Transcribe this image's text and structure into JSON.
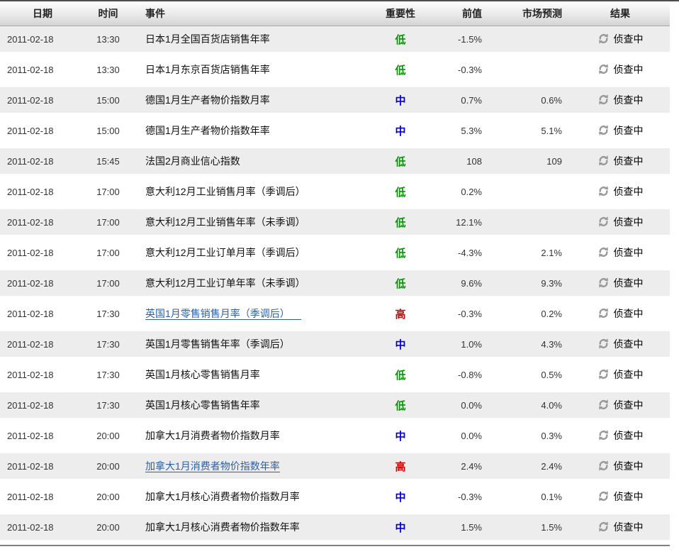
{
  "colors": {
    "low": "#009900",
    "mid": "#0000cc",
    "high": "#cc0000",
    "link": "#2b5fa8",
    "icon": "#999999"
  },
  "table": {
    "columns": [
      {
        "key": "date",
        "label": "日期"
      },
      {
        "key": "time",
        "label": "时间"
      },
      {
        "key": "event",
        "label": "事件"
      },
      {
        "key": "imp",
        "label": "重要性"
      },
      {
        "key": "prev",
        "label": "前值"
      },
      {
        "key": "forecast",
        "label": "市场预测"
      },
      {
        "key": "result",
        "label": "结果"
      }
    ],
    "rows": [
      {
        "date": "2011-02-18",
        "time": "13:30",
        "event": "日本1月全国百货店销售年率",
        "link": false,
        "trail": false,
        "importance": "低",
        "level": "low",
        "prev": "-1.5%",
        "forecast": "",
        "result": "侦查中"
      },
      {
        "date": "2011-02-18",
        "time": "13:30",
        "event": "日本1月东京百货店销售年率",
        "link": false,
        "trail": false,
        "importance": "低",
        "level": "low",
        "prev": "-0.3%",
        "forecast": "",
        "result": "侦查中"
      },
      {
        "date": "2011-02-18",
        "time": "15:00",
        "event": "德国1月生产者物价指数月率",
        "link": false,
        "trail": false,
        "importance": "中",
        "level": "mid",
        "prev": "0.7%",
        "forecast": "0.6%",
        "result": "侦查中"
      },
      {
        "date": "2011-02-18",
        "time": "15:00",
        "event": "德国1月生产者物价指数年率",
        "link": false,
        "trail": false,
        "importance": "中",
        "level": "mid",
        "prev": "5.3%",
        "forecast": "5.1%",
        "result": "侦查中"
      },
      {
        "date": "2011-02-18",
        "time": "15:45",
        "event": "法国2月商业信心指数",
        "link": false,
        "trail": false,
        "importance": "低",
        "level": "low",
        "prev": "108",
        "forecast": "109",
        "result": "侦查中"
      },
      {
        "date": "2011-02-18",
        "time": "17:00",
        "event": "意大利12月工业销售月率（季调后）",
        "link": false,
        "trail": false,
        "importance": "低",
        "level": "low",
        "prev": "0.2%",
        "forecast": "",
        "result": "侦查中"
      },
      {
        "date": "2011-02-18",
        "time": "17:00",
        "event": "意大利12月工业销售年率（未季调）",
        "link": false,
        "trail": false,
        "importance": "低",
        "level": "low",
        "prev": "12.1%",
        "forecast": "",
        "result": "侦查中"
      },
      {
        "date": "2011-02-18",
        "time": "17:00",
        "event": "意大利12月工业订单月率（季调后）",
        "link": false,
        "trail": false,
        "importance": "低",
        "level": "low",
        "prev": "-4.3%",
        "forecast": "2.1%",
        "result": "侦查中"
      },
      {
        "date": "2011-02-18",
        "time": "17:00",
        "event": "意大利12月工业订单年率（未季调）",
        "link": false,
        "trail": false,
        "importance": "低",
        "level": "low",
        "prev": "9.6%",
        "forecast": "9.3%",
        "result": "侦查中"
      },
      {
        "date": "2011-02-18",
        "time": "17:30",
        "event": "英国1月零售销售月率（季调后）",
        "link": true,
        "trail": true,
        "importance": "高",
        "level": "high",
        "prev": "-0.3%",
        "forecast": "0.2%",
        "result": "侦查中"
      },
      {
        "date": "2011-02-18",
        "time": "17:30",
        "event": "英国1月零售销售年率（季调后）",
        "link": false,
        "trail": false,
        "importance": "中",
        "level": "mid",
        "prev": "1.0%",
        "forecast": "4.3%",
        "result": "侦查中"
      },
      {
        "date": "2011-02-18",
        "time": "17:30",
        "event": "英国1月核心零售销售月率",
        "link": false,
        "trail": false,
        "importance": "低",
        "level": "low",
        "prev": "-0.8%",
        "forecast": "0.5%",
        "result": "侦查中"
      },
      {
        "date": "2011-02-18",
        "time": "17:30",
        "event": "英国1月核心零售销售年率",
        "link": false,
        "trail": false,
        "importance": "低",
        "level": "low",
        "prev": "0.0%",
        "forecast": "4.0%",
        "result": "侦查中"
      },
      {
        "date": "2011-02-18",
        "time": "20:00",
        "event": "加拿大1月消费者物价指数月率",
        "link": false,
        "trail": false,
        "importance": "中",
        "level": "mid",
        "prev": "0.0%",
        "forecast": "0.3%",
        "result": "侦查中"
      },
      {
        "date": "2011-02-18",
        "time": "20:00",
        "event": "加拿大1月消费者物价指数年率",
        "link": true,
        "trail": false,
        "importance": "高",
        "level": "high",
        "prev": "2.4%",
        "forecast": "2.4%",
        "result": "侦查中"
      },
      {
        "date": "2011-02-18",
        "time": "20:00",
        "event": "加拿大1月核心消费者物价指数月率",
        "link": false,
        "trail": false,
        "importance": "中",
        "level": "mid",
        "prev": "-0.3%",
        "forecast": "0.1%",
        "result": "侦查中"
      },
      {
        "date": "2011-02-18",
        "time": "20:00",
        "event": "加拿大1月核心消费者物价指数年率",
        "link": false,
        "trail": false,
        "importance": "中",
        "level": "mid",
        "prev": "1.5%",
        "forecast": "1.5%",
        "result": "侦查中"
      }
    ]
  }
}
